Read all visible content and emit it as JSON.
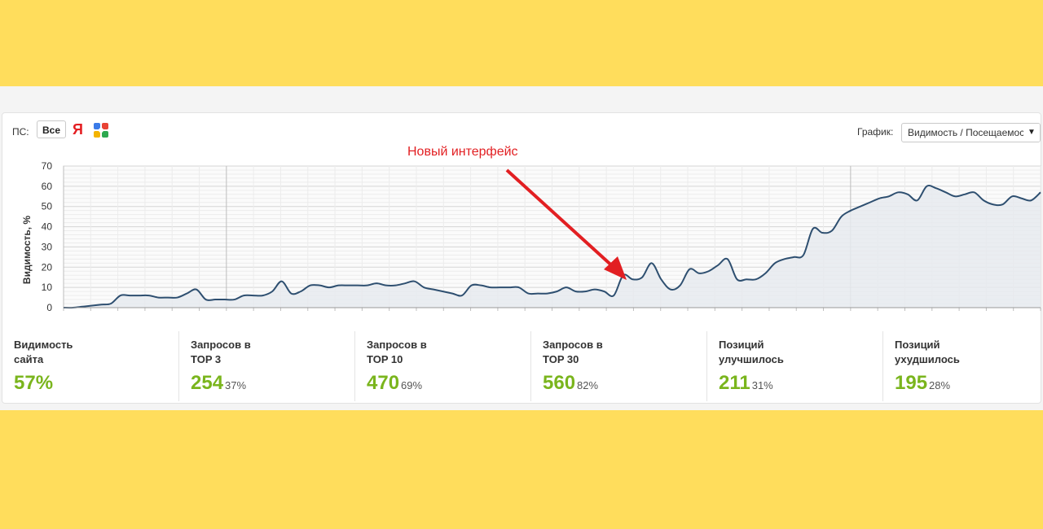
{
  "toolbar": {
    "ps_label": "ПС:",
    "all_button": "Все",
    "yandex_glyph": "Я",
    "graph_label": "График:",
    "graph_select_value": "Видимость / Посещаемость"
  },
  "annotation": {
    "text": "Новый интерфейс",
    "color": "#e21f22"
  },
  "colors": {
    "line": "#2e4f70",
    "area": "#e6eaef",
    "grid": "#dcdcdc",
    "accent_green": "#7ab51d"
  },
  "chart_data": {
    "type": "area",
    "title": "",
    "ylabel": "Видимость, %",
    "xlabel": "",
    "ylim": [
      0,
      70
    ],
    "yticks": [
      0,
      10,
      20,
      30,
      40,
      50,
      60,
      70
    ],
    "grid": true,
    "series": [
      {
        "values": [
          0,
          0,
          0.5,
          1,
          1.5,
          2,
          6,
          6,
          6,
          6,
          5,
          5,
          5,
          7,
          9,
          4,
          4,
          4,
          4,
          6,
          6,
          6,
          8,
          13,
          7,
          8,
          11,
          11,
          10,
          11,
          11,
          11,
          11,
          12,
          11,
          11,
          12,
          13,
          10,
          9,
          8,
          7,
          6,
          11,
          11,
          10,
          10,
          10,
          10,
          7,
          7,
          7,
          8,
          10,
          8,
          8,
          9,
          8,
          6,
          16,
          14,
          15,
          22,
          14,
          9,
          11,
          19,
          17,
          18,
          21,
          24,
          14,
          14,
          14,
          17,
          22,
          24,
          25,
          26,
          39,
          37,
          38,
          45,
          48,
          50,
          52,
          54,
          55,
          57,
          56,
          53,
          60,
          59,
          57,
          55,
          56,
          57,
          53,
          51,
          51,
          55,
          54,
          53,
          57
        ]
      }
    ]
  },
  "stats": [
    {
      "label_line1": "Видимость",
      "label_line2": "сайта",
      "value": "57%",
      "pct": ""
    },
    {
      "label_line1": "Запросов в",
      "label_line2": "TOP 3",
      "value": "254",
      "pct": "37%"
    },
    {
      "label_line1": "Запросов в",
      "label_line2": "TOP 10",
      "value": "470",
      "pct": "69%"
    },
    {
      "label_line1": "Запросов в",
      "label_line2": "TOP 30",
      "value": "560",
      "pct": "82%"
    },
    {
      "label_line1": "Позиций",
      "label_line2": "улучшилось",
      "value": "211",
      "pct": "31%"
    },
    {
      "label_line1": "Позиций",
      "label_line2": "ухудшилось",
      "value": "195",
      "pct": "28%"
    }
  ]
}
